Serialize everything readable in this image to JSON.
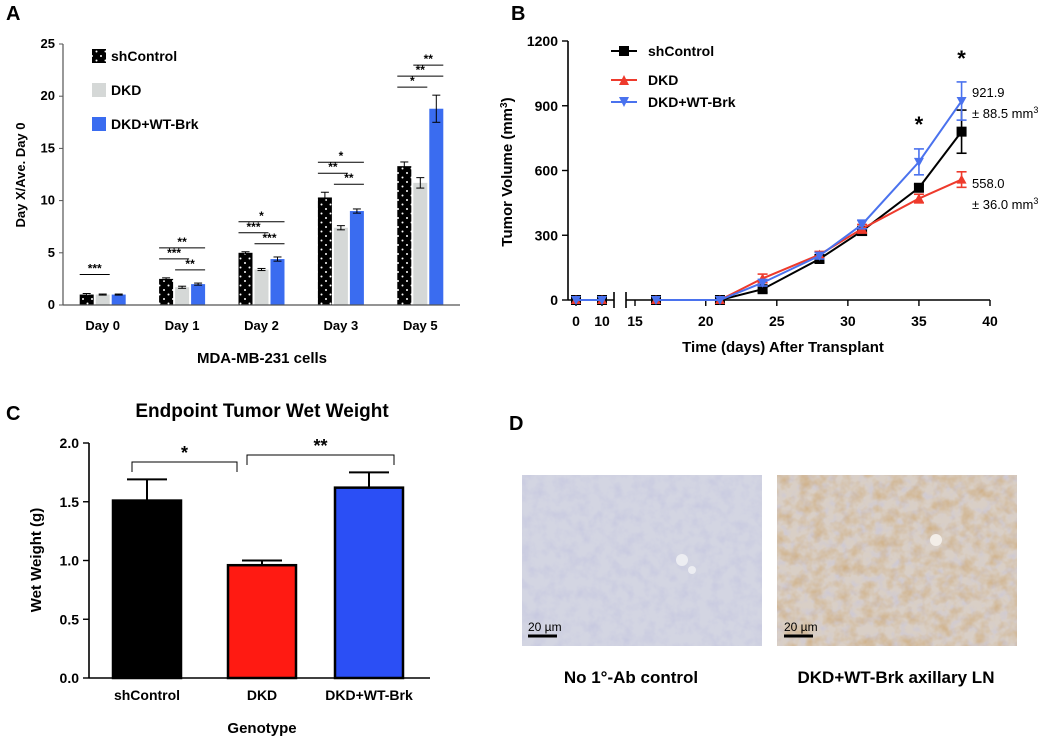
{
  "panels": {
    "a": "A",
    "b": "B",
    "c": "C",
    "d": "D"
  },
  "colors": {
    "shControl": "#000000",
    "DKD_bar": "#d5d8d7",
    "WT_bar": "#3a6cf0",
    "DKD_line": "#ee3a2c",
    "WT_line": "#4a72ee",
    "red": "#ff1a12",
    "blue": "#2b4ff5"
  },
  "chart_data": [
    {
      "id": "A",
      "type": "bar",
      "title": "",
      "xlabel": "MDA-MB-231 cells",
      "ylabel": "Day X/Ave. Day 0",
      "ylim": [
        0,
        25
      ],
      "yticks": [
        "0",
        "5",
        "10",
        "15",
        "20",
        "25"
      ],
      "categories": [
        "Day 0",
        "Day 1",
        "Day 2",
        "Day 3",
        "Day 5"
      ],
      "series": [
        {
          "name": "shControl",
          "values": [
            1.0,
            2.5,
            5.0,
            10.3,
            13.3
          ],
          "errors": [
            0.1,
            0.1,
            0.1,
            0.5,
            0.4
          ]
        },
        {
          "name": "DKD",
          "values": [
            1.0,
            1.7,
            3.4,
            7.4,
            11.7
          ],
          "errors": [
            0.05,
            0.1,
            0.1,
            0.2,
            0.5
          ]
        },
        {
          "name": "DKD+WT-Brk",
          "values": [
            1.0,
            2.0,
            4.4,
            9.0,
            18.8
          ],
          "errors": [
            0.05,
            0.1,
            0.2,
            0.2,
            1.3
          ]
        }
      ],
      "significance": [
        {
          "cat": 0,
          "from": 0,
          "to": 1,
          "label": "***",
          "level": 1
        },
        {
          "cat": 1,
          "from": 1,
          "to": 2,
          "label": "**",
          "level": 0
        },
        {
          "cat": 1,
          "from": 0,
          "to": 1,
          "label": "***",
          "level": 1
        },
        {
          "cat": 1,
          "from": 0,
          "to": 2,
          "label": "**",
          "level": 2
        },
        {
          "cat": 2,
          "from": 1,
          "to": 2,
          "label": "***",
          "level": 0
        },
        {
          "cat": 2,
          "from": 0,
          "to": 1,
          "label": "***",
          "level": 1
        },
        {
          "cat": 2,
          "from": 0,
          "to": 2,
          "label": "*",
          "level": 2
        },
        {
          "cat": 3,
          "from": 1,
          "to": 2,
          "label": "**",
          "level": 0
        },
        {
          "cat": 3,
          "from": 0,
          "to": 1,
          "label": "**",
          "level": 1
        },
        {
          "cat": 3,
          "from": 0,
          "to": 2,
          "label": "*",
          "level": 2
        },
        {
          "cat": 4,
          "from": 0,
          "to": 1,
          "label": "*",
          "level": 0
        },
        {
          "cat": 4,
          "from": 0,
          "to": 2,
          "label": "**",
          "level": 1
        },
        {
          "cat": 4,
          "from": 1,
          "to": 2,
          "label": "**",
          "level": 2
        }
      ],
      "legend": [
        "shControl",
        "DKD",
        "DKD+WT-Brk"
      ]
    },
    {
      "id": "B",
      "type": "line",
      "xlabel": "Time (days) After Transplant",
      "ylabel": "Tumor Volume (mm",
      "ylabel_sup": "3",
      "ylabel_end": ")",
      "ylim": [
        0,
        1200
      ],
      "yticks": [
        "0",
        "300",
        "600",
        "900",
        "1200"
      ],
      "xticks_left": [
        "0",
        "10"
      ],
      "xticks_right": [
        "15",
        "20",
        "25",
        "30",
        "35",
        "40"
      ],
      "series": [
        {
          "name": "shControl",
          "x": [
            0,
            10,
            16.5,
            21,
            24,
            28,
            31,
            35,
            38
          ],
          "y": [
            0,
            0,
            0,
            0,
            50,
            190,
            320,
            520,
            780
          ],
          "err": [
            0,
            0,
            0,
            0,
            15,
            15,
            20,
            15,
            100
          ]
        },
        {
          "name": "DKD",
          "x": [
            0,
            10,
            16.5,
            21,
            24,
            28,
            31,
            35,
            38
          ],
          "y": [
            0,
            0,
            0,
            0,
            100,
            210,
            330,
            470,
            558
          ],
          "err": [
            0,
            0,
            0,
            0,
            20,
            15,
            20,
            20,
            36
          ]
        },
        {
          "name": "DKD+WT-Brk",
          "x": [
            0,
            10,
            16.5,
            21,
            24,
            28,
            31,
            35,
            38
          ],
          "y": [
            0,
            0,
            0,
            0,
            80,
            205,
            350,
            640,
            921.9
          ],
          "err": [
            0,
            0,
            0,
            0,
            15,
            15,
            20,
            60,
            88.5
          ]
        }
      ],
      "stars": [
        {
          "x": 35,
          "label": "*"
        },
        {
          "x": 38,
          "label": "*"
        }
      ],
      "annotations": {
        "wt_value": "921.9",
        "wt_err": "± 88.5 mm",
        "dkd_value": "558.0",
        "dkd_err": "± 36.0 mm",
        "sup": "3"
      },
      "legend": [
        "shControl",
        "DKD",
        "DKD+WT-Brk"
      ]
    },
    {
      "id": "C",
      "type": "bar",
      "title": "Endpoint Tumor Wet Weight",
      "xlabel": "Genotype",
      "ylabel": "Wet Weight (g)",
      "ylim": [
        0,
        2.0
      ],
      "yticks": [
        "0.0",
        "0.5",
        "1.0",
        "1.5",
        "2.0"
      ],
      "categories": [
        "shControl",
        "DKD",
        "DKD+WT-Brk"
      ],
      "values": [
        1.51,
        0.96,
        1.62
      ],
      "errors": [
        0.18,
        0.04,
        0.13
      ],
      "significance": [
        {
          "from": 0,
          "to": 1,
          "label": "*"
        },
        {
          "from": 1,
          "to": 2,
          "label": "**"
        }
      ]
    }
  ],
  "panel_d": {
    "scale_label": "20 µm",
    "caption_left": "No 1°-Ab control",
    "caption_right": "DKD+WT-Brk axillary LN"
  }
}
